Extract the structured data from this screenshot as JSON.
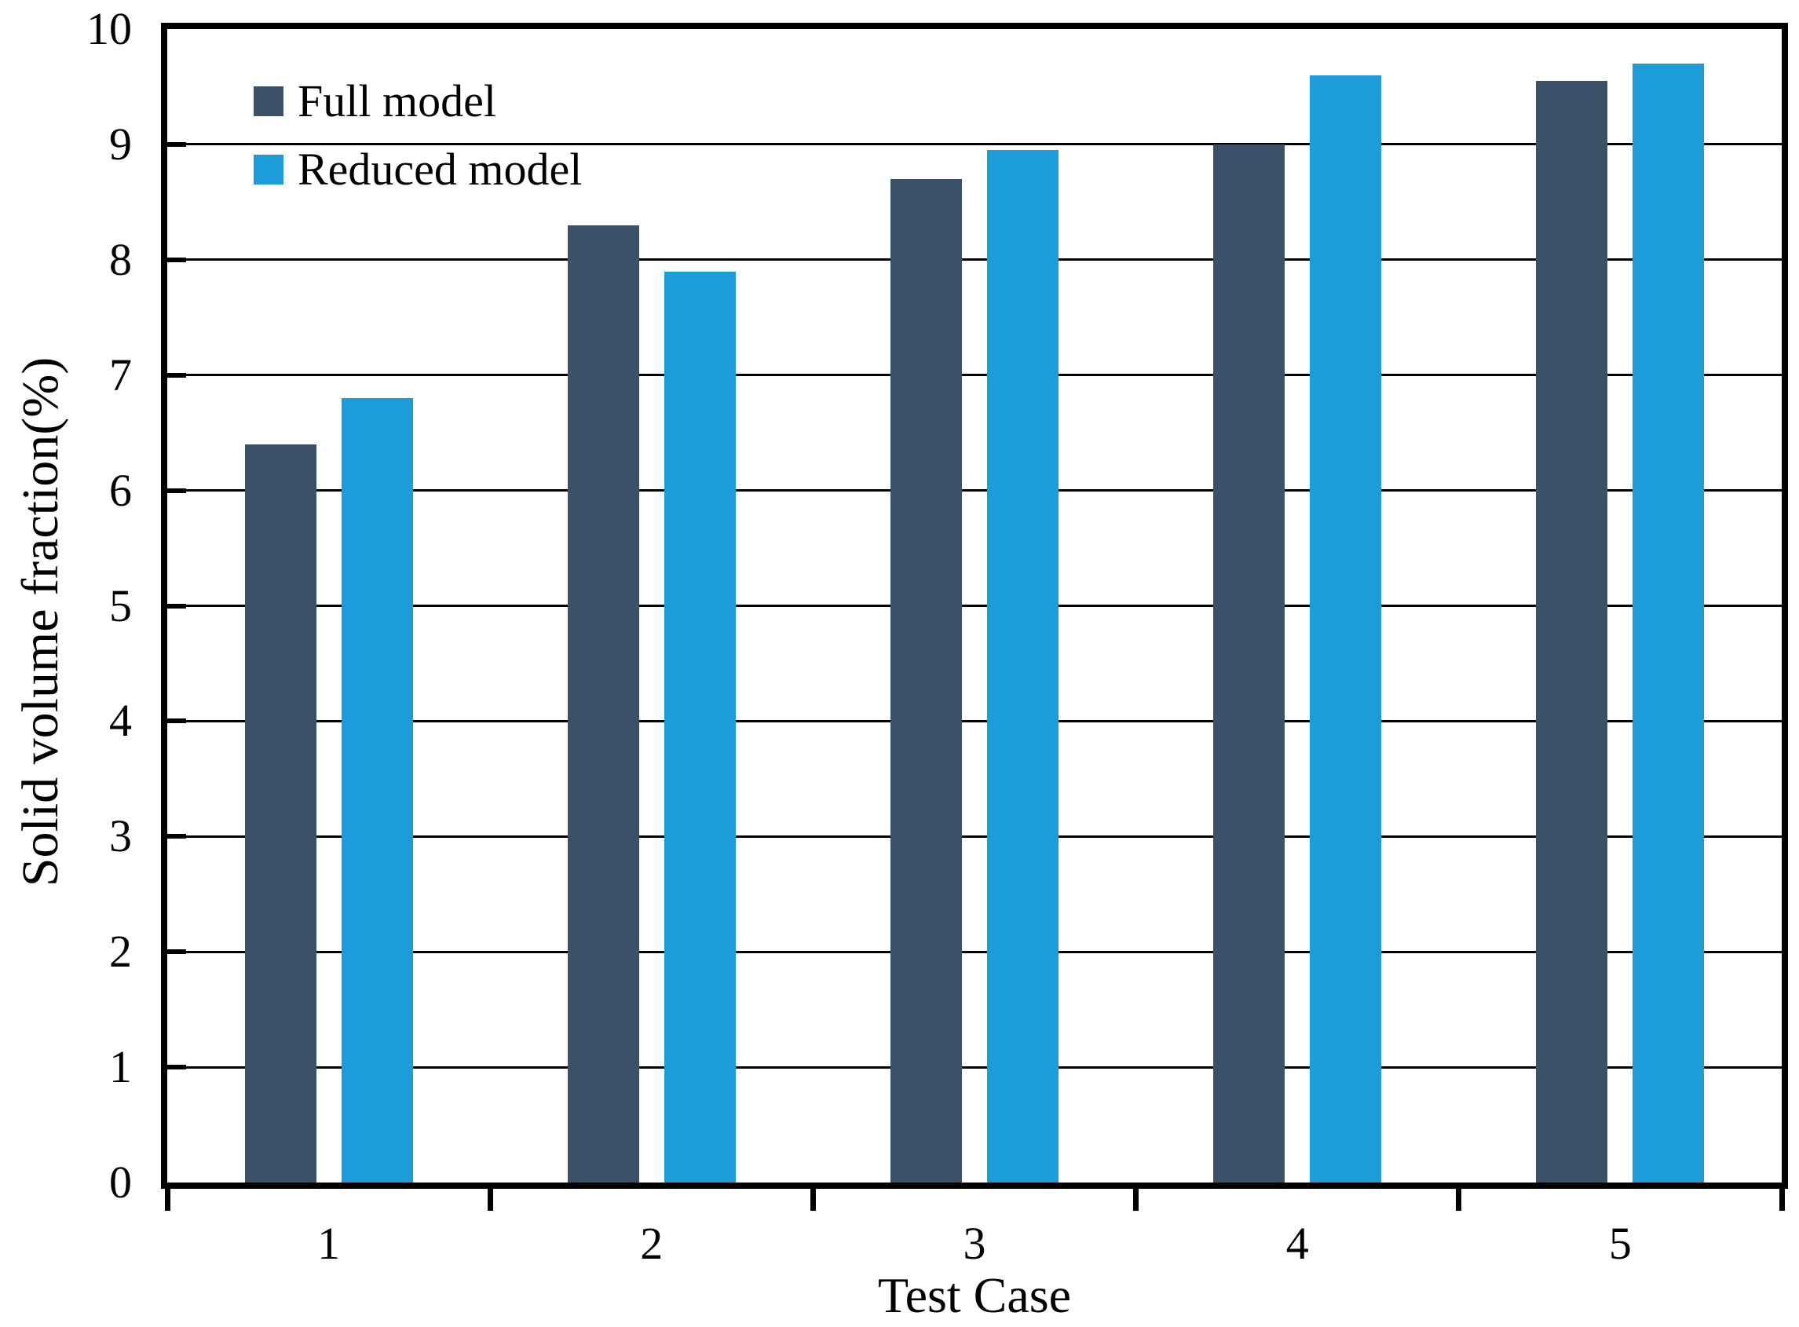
{
  "chart_data": {
    "type": "bar",
    "title": "",
    "xlabel": "Test Case",
    "ylabel": "Solid volume fraction(%)",
    "categories": [
      "1",
      "2",
      "3",
      "4",
      "5"
    ],
    "series": [
      {
        "name": "Full model",
        "color": "#3B5168",
        "values": [
          6.4,
          8.3,
          8.7,
          9.0,
          9.55
        ]
      },
      {
        "name": "Reduced model",
        "color": "#1C9CD8",
        "values": [
          6.8,
          7.9,
          8.95,
          9.6,
          9.7
        ]
      }
    ],
    "ylim": [
      0,
      10
    ],
    "yticks": [
      0,
      1,
      2,
      3,
      4,
      5,
      6,
      7,
      8,
      9,
      10
    ],
    "grid": "horizontal",
    "gridline_color": "#000000",
    "frame_color": "#000000",
    "legend_position": "top-left-inside"
  }
}
